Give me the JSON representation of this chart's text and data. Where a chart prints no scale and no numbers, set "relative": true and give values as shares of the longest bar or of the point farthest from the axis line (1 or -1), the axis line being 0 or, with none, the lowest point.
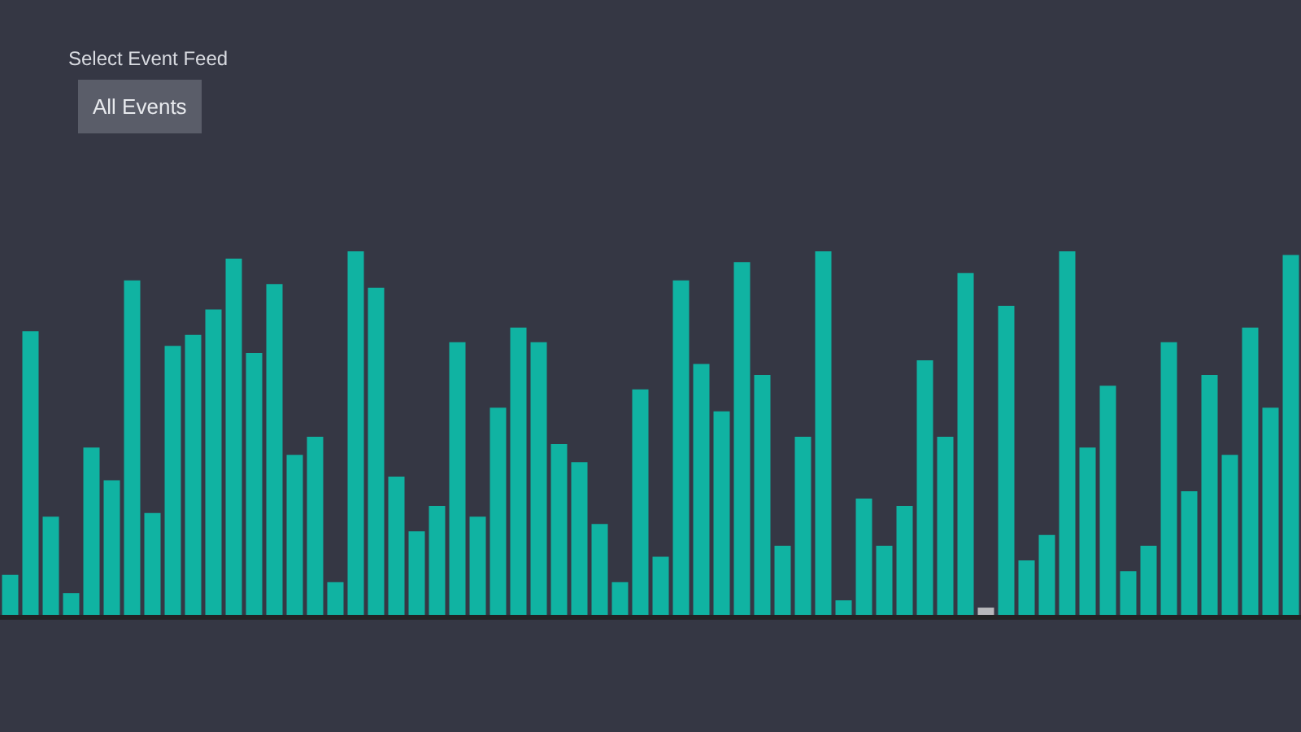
{
  "chart_data": {
    "type": "bar",
    "relative": true,
    "annotations": [
      "Select Event Feed",
      "All Events"
    ],
    "categories": [
      null,
      null,
      null,
      null,
      null,
      null,
      null,
      null,
      null,
      null,
      null,
      null,
      null,
      null,
      null,
      null,
      null,
      null,
      null,
      null,
      null,
      null,
      null,
      null,
      null,
      null,
      null,
      null,
      null,
      null,
      null,
      null,
      null,
      null,
      null,
      null,
      null,
      null,
      null,
      null,
      null,
      null,
      null,
      null,
      null,
      null,
      null,
      null,
      null,
      null,
      null,
      null,
      null,
      null,
      null,
      null,
      null,
      null,
      null,
      null,
      null,
      null,
      null,
      null
    ],
    "values": [
      0.11,
      0.78,
      0.27,
      0.06,
      0.46,
      0.37,
      0.92,
      0.28,
      0.74,
      0.77,
      0.84,
      0.98,
      0.72,
      0.91,
      0.44,
      0.49,
      0.09,
      1,
      0.9,
      0.38,
      0.23,
      0.3,
      0.75,
      0.27,
      0.57,
      0.79,
      0.75,
      0.47,
      0.42,
      0.25,
      0.09,
      0.62,
      0.16,
      0.92,
      0.69,
      0.56,
      0.97,
      0.66,
      0.19,
      0.49,
      1,
      0.04,
      0.32,
      0.19,
      0.3,
      0.7,
      0.49,
      0.94,
      0.02,
      0.85,
      0.15,
      0.22,
      1,
      0.46,
      0.63,
      0.12,
      0.19,
      0.75,
      0.34,
      0.66,
      0.44,
      0.79,
      0.57,
      0.99
    ],
    "colors": [
      "#10b3a2",
      "#10b3a2",
      "#10b3a2",
      "#10b3a2",
      "#10b3a2",
      "#10b3a2",
      "#10b3a2",
      "#10b3a2",
      "#10b3a2",
      "#10b3a2",
      "#10b3a2",
      "#10b3a2",
      "#10b3a2",
      "#10b3a2",
      "#10b3a2",
      "#10b3a2",
      "#10b3a2",
      "#10b3a2",
      "#10b3a2",
      "#10b3a2",
      "#10b3a2",
      "#10b3a2",
      "#10b3a2",
      "#10b3a2",
      "#10b3a2",
      "#10b3a2",
      "#10b3a2",
      "#10b3a2",
      "#10b3a2",
      "#10b3a2",
      "#10b3a2",
      "#10b3a2",
      "#10b3a2",
      "#10b3a2",
      "#10b3a2",
      "#10b3a2",
      "#10b3a2",
      "#10b3a2",
      "#10b3a2",
      "#10b3a2",
      "#10b3a2",
      "#10b3a2",
      "#10b3a2",
      "#10b3a2",
      "#10b3a2",
      "#10b3a2",
      "#10b3a2",
      "#10b3a2",
      "#b8b8bc",
      "#10b3a2",
      "#10b3a2",
      "#10b3a2",
      "#10b3a2",
      "#10b3a2",
      "#10b3a2",
      "#10b3a2",
      "#10b3a2",
      "#10b3a2",
      "#10b3a2",
      "#10b3a2",
      "#10b3a2",
      "#10b3a2",
      "#10b3a2",
      "#10b3a2"
    ]
  }
}
